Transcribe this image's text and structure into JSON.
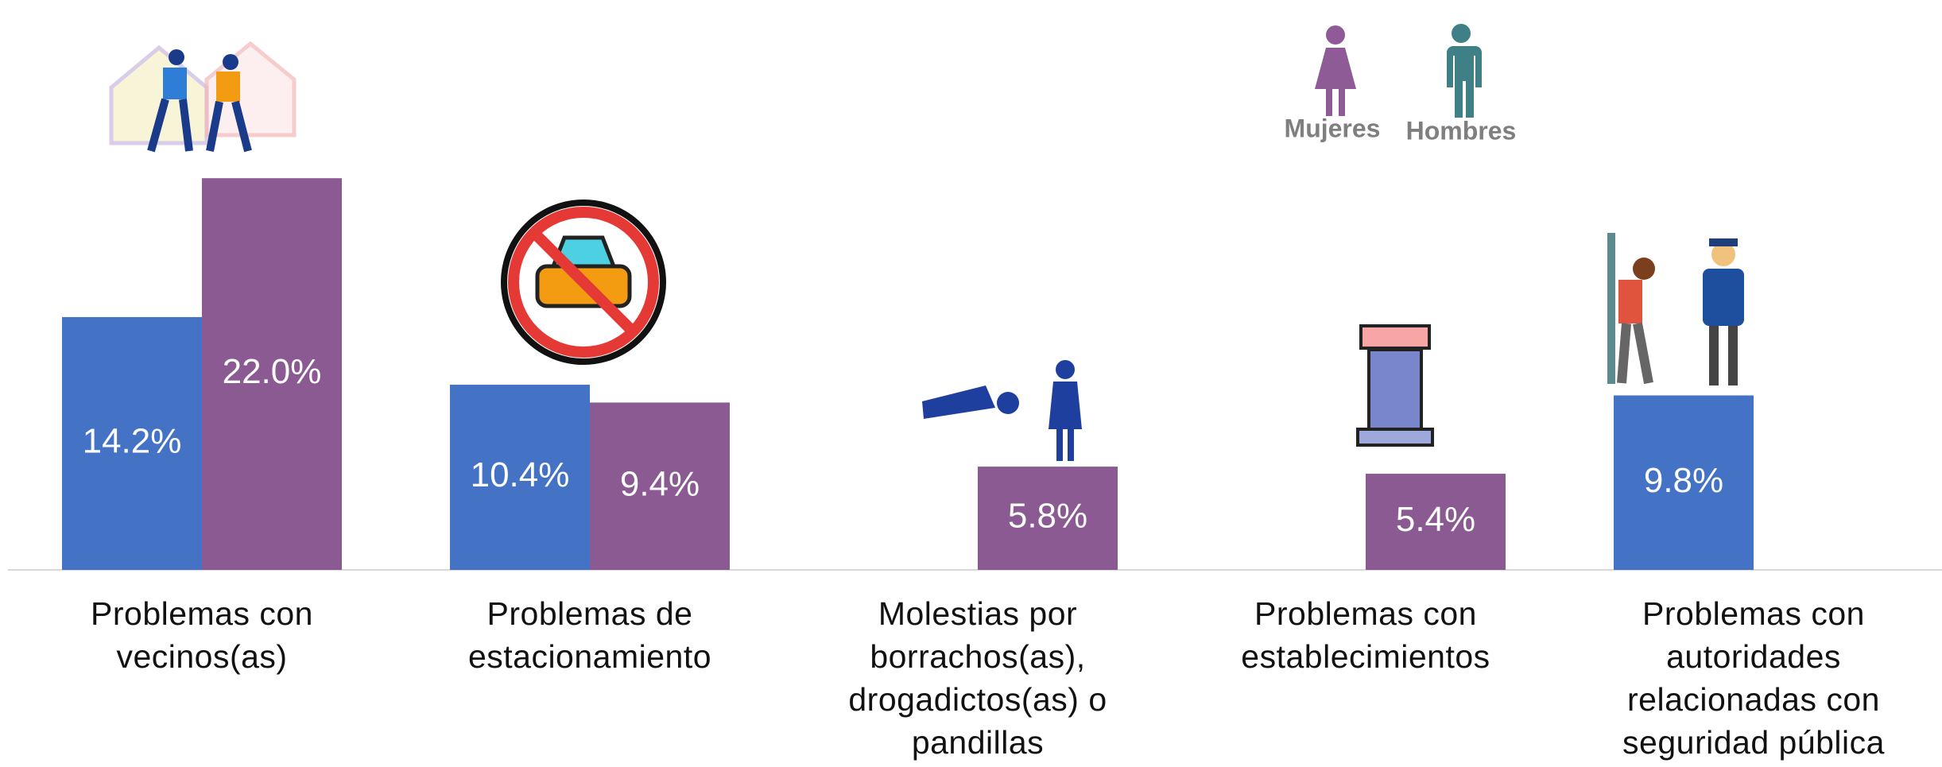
{
  "chart_data": {
    "type": "bar",
    "categories": [
      "Problemas con vecinos(as)",
      "Problemas de estacionamiento",
      "Molestias por borrachos(as), drogadictos(as) o pandillas",
      "Problemas con establecimientos",
      "Problemas con autoridades relacionadas con seguridad pública"
    ],
    "series": [
      {
        "name": "Hombres",
        "color": "#4472c4",
        "values": [
          14.2,
          10.4,
          null,
          null,
          9.8
        ],
        "value_labels": [
          "14.2%",
          "10.4%",
          null,
          null,
          "9.8%"
        ]
      },
      {
        "name": "Mujeres",
        "color": "#8b5a92",
        "values": [
          22.0,
          9.4,
          5.8,
          5.4,
          null
        ],
        "value_labels": [
          "22.0%",
          "9.4%",
          "5.8%",
          "5.4%",
          null
        ]
      }
    ]
  }
}
